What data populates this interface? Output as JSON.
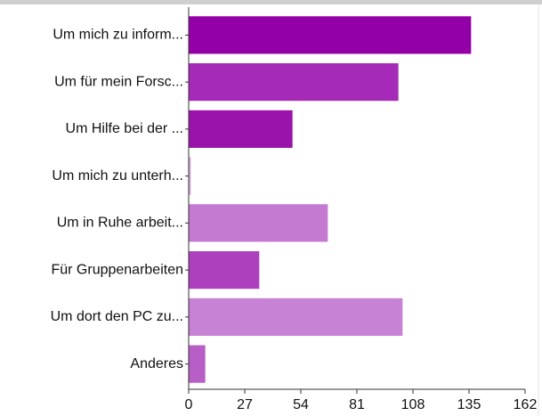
{
  "chart_data": {
    "type": "bar",
    "orientation": "horizontal",
    "categories": [
      "Um mich zu inform...",
      "Um für mein Forsc...",
      "Um Hilfe bei der ...",
      "Um mich zu unterh...",
      "Um in Ruhe arbeit...",
      "Für Gruppenarbeiten",
      "Um dort den PC zu...",
      "Anderes"
    ],
    "values": [
      136,
      101,
      50,
      1,
      67,
      34,
      103,
      8
    ],
    "colors": [
      "#9400a8",
      "#a62ab8",
      "#9a14ac",
      "#d9a6de",
      "#c57ad2",
      "#ad40bd",
      "#c882d5",
      "#b75ec7"
    ],
    "xlim": [
      0,
      162
    ],
    "xticks": [
      0,
      27,
      54,
      81,
      108,
      135,
      162
    ],
    "grid": false
  }
}
